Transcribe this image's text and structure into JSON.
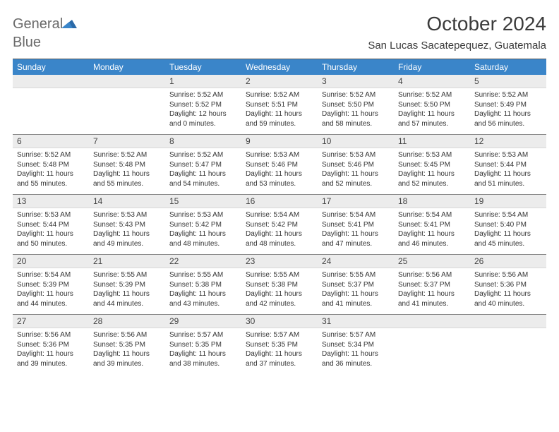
{
  "logo": {
    "text1": "General",
    "text2": "Blue"
  },
  "title": "October 2024",
  "location": "San Lucas Sacatepequez, Guatemala",
  "colors": {
    "header_bg": "#3a85c9",
    "header_text": "#ffffff",
    "date_bg": "#ececec",
    "top_border": "#5a5a5a",
    "week_border": "#8a8a8a",
    "text": "#333333",
    "logo_gray": "#6a6a6a",
    "logo_blue": "#3a7fc4"
  },
  "dayNames": [
    "Sunday",
    "Monday",
    "Tuesday",
    "Wednesday",
    "Thursday",
    "Friday",
    "Saturday"
  ],
  "startOffset": 2,
  "days": [
    {
      "n": 1,
      "sr": "5:52 AM",
      "ss": "5:52 PM",
      "dl": "12 hours and 0 minutes."
    },
    {
      "n": 2,
      "sr": "5:52 AM",
      "ss": "5:51 PM",
      "dl": "11 hours and 59 minutes."
    },
    {
      "n": 3,
      "sr": "5:52 AM",
      "ss": "5:50 PM",
      "dl": "11 hours and 58 minutes."
    },
    {
      "n": 4,
      "sr": "5:52 AM",
      "ss": "5:50 PM",
      "dl": "11 hours and 57 minutes."
    },
    {
      "n": 5,
      "sr": "5:52 AM",
      "ss": "5:49 PM",
      "dl": "11 hours and 56 minutes."
    },
    {
      "n": 6,
      "sr": "5:52 AM",
      "ss": "5:48 PM",
      "dl": "11 hours and 55 minutes."
    },
    {
      "n": 7,
      "sr": "5:52 AM",
      "ss": "5:48 PM",
      "dl": "11 hours and 55 minutes."
    },
    {
      "n": 8,
      "sr": "5:52 AM",
      "ss": "5:47 PM",
      "dl": "11 hours and 54 minutes."
    },
    {
      "n": 9,
      "sr": "5:53 AM",
      "ss": "5:46 PM",
      "dl": "11 hours and 53 minutes."
    },
    {
      "n": 10,
      "sr": "5:53 AM",
      "ss": "5:46 PM",
      "dl": "11 hours and 52 minutes."
    },
    {
      "n": 11,
      "sr": "5:53 AM",
      "ss": "5:45 PM",
      "dl": "11 hours and 52 minutes."
    },
    {
      "n": 12,
      "sr": "5:53 AM",
      "ss": "5:44 PM",
      "dl": "11 hours and 51 minutes."
    },
    {
      "n": 13,
      "sr": "5:53 AM",
      "ss": "5:44 PM",
      "dl": "11 hours and 50 minutes."
    },
    {
      "n": 14,
      "sr": "5:53 AM",
      "ss": "5:43 PM",
      "dl": "11 hours and 49 minutes."
    },
    {
      "n": 15,
      "sr": "5:53 AM",
      "ss": "5:42 PM",
      "dl": "11 hours and 48 minutes."
    },
    {
      "n": 16,
      "sr": "5:54 AM",
      "ss": "5:42 PM",
      "dl": "11 hours and 48 minutes."
    },
    {
      "n": 17,
      "sr": "5:54 AM",
      "ss": "5:41 PM",
      "dl": "11 hours and 47 minutes."
    },
    {
      "n": 18,
      "sr": "5:54 AM",
      "ss": "5:41 PM",
      "dl": "11 hours and 46 minutes."
    },
    {
      "n": 19,
      "sr": "5:54 AM",
      "ss": "5:40 PM",
      "dl": "11 hours and 45 minutes."
    },
    {
      "n": 20,
      "sr": "5:54 AM",
      "ss": "5:39 PM",
      "dl": "11 hours and 44 minutes."
    },
    {
      "n": 21,
      "sr": "5:55 AM",
      "ss": "5:39 PM",
      "dl": "11 hours and 44 minutes."
    },
    {
      "n": 22,
      "sr": "5:55 AM",
      "ss": "5:38 PM",
      "dl": "11 hours and 43 minutes."
    },
    {
      "n": 23,
      "sr": "5:55 AM",
      "ss": "5:38 PM",
      "dl": "11 hours and 42 minutes."
    },
    {
      "n": 24,
      "sr": "5:55 AM",
      "ss": "5:37 PM",
      "dl": "11 hours and 41 minutes."
    },
    {
      "n": 25,
      "sr": "5:56 AM",
      "ss": "5:37 PM",
      "dl": "11 hours and 41 minutes."
    },
    {
      "n": 26,
      "sr": "5:56 AM",
      "ss": "5:36 PM",
      "dl": "11 hours and 40 minutes."
    },
    {
      "n": 27,
      "sr": "5:56 AM",
      "ss": "5:36 PM",
      "dl": "11 hours and 39 minutes."
    },
    {
      "n": 28,
      "sr": "5:56 AM",
      "ss": "5:35 PM",
      "dl": "11 hours and 39 minutes."
    },
    {
      "n": 29,
      "sr": "5:57 AM",
      "ss": "5:35 PM",
      "dl": "11 hours and 38 minutes."
    },
    {
      "n": 30,
      "sr": "5:57 AM",
      "ss": "5:35 PM",
      "dl": "11 hours and 37 minutes."
    },
    {
      "n": 31,
      "sr": "5:57 AM",
      "ss": "5:34 PM",
      "dl": "11 hours and 36 minutes."
    }
  ],
  "labels": {
    "sunrise": "Sunrise:",
    "sunset": "Sunset:",
    "daylight": "Daylight:"
  }
}
